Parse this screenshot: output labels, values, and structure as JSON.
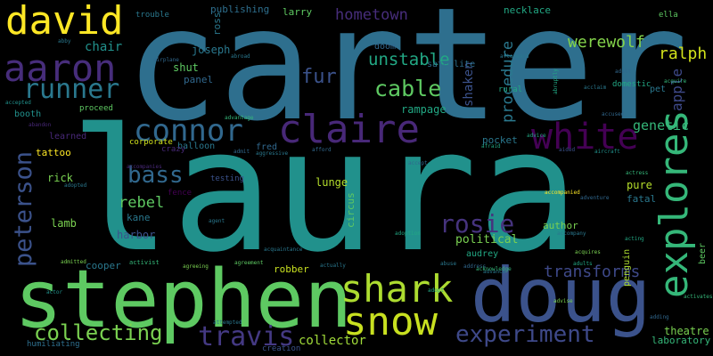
{
  "words": [
    {
      "text": "carter",
      "color": "#2e6f8e"
    },
    {
      "text": "laura",
      "color": "#21918c"
    },
    {
      "text": "stephen",
      "color": "#5ec962"
    },
    {
      "text": "doug",
      "color": "#3b528b"
    },
    {
      "text": "david",
      "color": "#fde725"
    },
    {
      "text": "aaron",
      "color": "#472d7b"
    },
    {
      "text": "runner",
      "color": "#2a788e"
    },
    {
      "text": "claire",
      "color": "#482878"
    },
    {
      "text": "connor",
      "color": "#31688e"
    },
    {
      "text": "white",
      "color": "#440154"
    },
    {
      "text": "shark",
      "color": "#addc30"
    },
    {
      "text": "snow",
      "color": "#c8e020"
    },
    {
      "text": "explores",
      "color": "#35b779"
    },
    {
      "text": "peterson",
      "color": "#3b528b"
    },
    {
      "text": "travis",
      "color": "#443983"
    },
    {
      "text": "experiment",
      "color": "#3e4989"
    },
    {
      "text": "collecting",
      "color": "#7ad151"
    },
    {
      "text": "transforms",
      "color": "#3e4989"
    },
    {
      "text": "bass",
      "color": "#31688e"
    },
    {
      "text": "rosie",
      "color": "#46337e"
    },
    {
      "text": "cable",
      "color": "#5ec962"
    },
    {
      "text": "werewolf",
      "color": "#84d44b"
    },
    {
      "text": "hometown",
      "color": "#472d7b"
    },
    {
      "text": "unstable",
      "color": "#22a884"
    },
    {
      "text": "fur",
      "color": "#3b528b"
    },
    {
      "text": "ralph",
      "color": "#d2e21b"
    },
    {
      "text": "genetic",
      "color": "#35b779"
    },
    {
      "text": "procedure",
      "color": "#2a788e"
    },
    {
      "text": "shaken",
      "color": "#3b528b"
    },
    {
      "text": "apple",
      "color": "#3e4989"
    },
    {
      "text": "rebel",
      "color": "#5ec962"
    },
    {
      "text": "collector",
      "color": "#a0da39"
    },
    {
      "text": "theatre",
      "color": "#7ad151"
    },
    {
      "text": "laboratory",
      "color": "#35b779"
    },
    {
      "text": "chair",
      "color": "#21918c"
    },
    {
      "text": "joseph",
      "color": "#2a788e"
    },
    {
      "text": "shut",
      "color": "#5ec962"
    },
    {
      "text": "panel",
      "color": "#31688e"
    },
    {
      "text": "ross",
      "color": "#2a788e"
    },
    {
      "text": "publishing",
      "color": "#2e6f8e"
    },
    {
      "text": "larry",
      "color": "#5ec962"
    },
    {
      "text": "necklace",
      "color": "#22a884"
    },
    {
      "text": "ella",
      "color": "#5ec962"
    },
    {
      "text": "doom",
      "color": "#31688e"
    },
    {
      "text": "satellite",
      "color": "#2e6f8e"
    },
    {
      "text": "rampage",
      "color": "#22a884"
    },
    {
      "text": "pocket",
      "color": "#2a788e"
    },
    {
      "text": "rural",
      "color": "#22a884"
    },
    {
      "text": "domestic",
      "color": "#22a884"
    },
    {
      "text": "pet",
      "color": "#2a788e"
    },
    {
      "text": "tattoo",
      "color": "#fde725"
    },
    {
      "text": "rick",
      "color": "#7ad151"
    },
    {
      "text": "learned",
      "color": "#482878"
    },
    {
      "text": "booth",
      "color": "#21918c"
    },
    {
      "text": "proceed",
      "color": "#5ec962"
    },
    {
      "text": "corporate",
      "color": "#d2e21b"
    },
    {
      "text": "balloon",
      "color": "#2a788e"
    },
    {
      "text": "crazy",
      "color": "#482878"
    },
    {
      "text": "fred",
      "color": "#31688e"
    },
    {
      "text": "testing",
      "color": "#3b528b"
    },
    {
      "text": "fence",
      "color": "#440154"
    },
    {
      "text": "kane",
      "color": "#2a788e"
    },
    {
      "text": "harbor",
      "color": "#3b528b"
    },
    {
      "text": "lamb",
      "color": "#7ad151"
    },
    {
      "text": "lunge",
      "color": "#b5de2b"
    },
    {
      "text": "circus",
      "color": "#5ec962"
    },
    {
      "text": "political",
      "color": "#7ad151"
    },
    {
      "text": "audrey",
      "color": "#22a884"
    },
    {
      "text": "author",
      "color": "#7ad151"
    },
    {
      "text": "pure",
      "color": "#b5de2b"
    },
    {
      "text": "fatal",
      "color": "#2a788e"
    },
    {
      "text": "penguin",
      "color": "#addc30"
    },
    {
      "text": "beer",
      "color": "#5ec962"
    },
    {
      "text": "cooper",
      "color": "#2a788e"
    },
    {
      "text": "robber",
      "color": "#c8e020"
    },
    {
      "text": "humiliating",
      "color": "#2e6f8e"
    },
    {
      "text": "trouble",
      "color": "#2a788e"
    },
    {
      "text": "airplane",
      "color": "#31688e"
    },
    {
      "text": "activist",
      "color": "#35b779"
    },
    {
      "text": "accompanied",
      "color": "#fde725"
    },
    {
      "text": "abruptly",
      "color": "#22a884"
    },
    {
      "text": "actress",
      "color": "#35b779"
    },
    {
      "text": "aircraft",
      "color": "#21918c"
    },
    {
      "text": "accompanies",
      "color": "#482878"
    },
    {
      "text": "advantage",
      "color": "#35b779"
    },
    {
      "text": "agreement",
      "color": "#5ec962"
    },
    {
      "text": "agreeing",
      "color": "#7ad151"
    },
    {
      "text": "acquaintance",
      "color": "#2a788e"
    },
    {
      "text": "creation",
      "color": "#3b528b"
    },
    {
      "text": "accompany",
      "color": "#2a788e"
    },
    {
      "text": "acting",
      "color": "#22a884"
    },
    {
      "text": "activates",
      "color": "#35b779"
    },
    {
      "text": "admitted",
      "color": "#7ad151"
    },
    {
      "text": "adopt",
      "color": "#22a884"
    },
    {
      "text": "abuse",
      "color": "#2a788e"
    },
    {
      "text": "acquires",
      "color": "#7ad151"
    },
    {
      "text": "advance",
      "color": "#2a788e"
    },
    {
      "text": "address",
      "color": "#31688e"
    },
    {
      "text": "advise",
      "color": "#7ad151"
    },
    {
      "text": "admit",
      "color": "#31688e"
    },
    {
      "text": "adults",
      "color": "#22a884"
    },
    {
      "text": "actor",
      "color": "#21918c"
    },
    {
      "text": "abby",
      "color": "#2a788e"
    },
    {
      "text": "accepted",
      "color": "#21918c"
    },
    {
      "text": "abroad",
      "color": "#2a788e"
    },
    {
      "text": "abandon",
      "color": "#482878"
    },
    {
      "text": "aggressive",
      "color": "#2a788e"
    },
    {
      "text": "afford",
      "color": "#31688e"
    },
    {
      "text": "adopted",
      "color": "#2a788e"
    },
    {
      "text": "advice",
      "color": "#22a884"
    },
    {
      "text": "afraid",
      "color": "#22a884"
    },
    {
      "text": "accused",
      "color": "#31688e"
    },
    {
      "text": "adult",
      "color": "#31688e"
    },
    {
      "text": "acquire",
      "color": "#35b779"
    },
    {
      "text": "acclaim",
      "color": "#2a788e"
    },
    {
      "text": "acknowledge",
      "color": "#35b779"
    },
    {
      "text": "adventure",
      "color": "#31688e"
    },
    {
      "text": "adoption",
      "color": "#22a884"
    },
    {
      "text": "actually",
      "color": "#2a788e"
    },
    {
      "text": "accept",
      "color": "#31688e"
    },
    {
      "text": "aided",
      "color": "#3b528b"
    },
    {
      "text": "afterward",
      "color": "#2a788e"
    },
    {
      "text": "attempted",
      "color": "#2a788e"
    },
    {
      "text": "adding",
      "color": "#31688e"
    },
    {
      "text": "agent",
      "color": "#2a788e"
    }
  ]
}
